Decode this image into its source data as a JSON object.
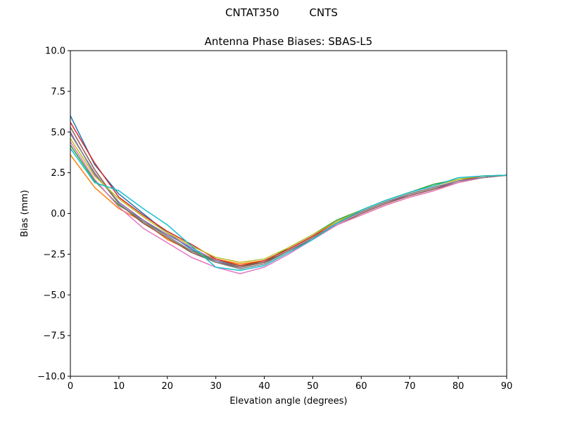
{
  "figure": {
    "suptitle": "CNTAT350         CNTS"
  },
  "chart_data": {
    "type": "line",
    "title": "Antenna Phase Biases: SBAS-L5",
    "xlabel": "Elevation angle (degrees)",
    "ylabel": "Bias (mm)",
    "xlim": [
      0,
      90
    ],
    "ylim": [
      -10,
      10
    ],
    "x_ticks": [
      0,
      10,
      20,
      30,
      40,
      50,
      60,
      70,
      80,
      90
    ],
    "y_ticks": [
      -10.0,
      -7.5,
      -5.0,
      -2.5,
      0.0,
      2.5,
      5.0,
      7.5,
      10.0
    ],
    "y_tick_labels": [
      "−10.0",
      "−7.5",
      "−5.0",
      "−2.5",
      "0.0",
      "2.5",
      "5.0",
      "7.5",
      "10.0"
    ],
    "grid": false,
    "legend": false,
    "x": [
      0,
      5,
      10,
      15,
      20,
      25,
      30,
      35,
      40,
      45,
      50,
      55,
      60,
      65,
      70,
      75,
      80,
      85,
      90
    ],
    "series": [
      {
        "color": "#1f77b4",
        "values": [
          6.0,
          3.0,
          1.2,
          0.0,
          -1.2,
          -2.2,
          -3.0,
          -3.3,
          -3.0,
          -2.3,
          -1.5,
          -0.6,
          0.1,
          0.7,
          1.2,
          1.6,
          2.0,
          2.2,
          2.35
        ]
      },
      {
        "color": "#ff7f0e",
        "values": [
          3.6,
          1.6,
          0.3,
          -0.5,
          -1.6,
          -2.3,
          -2.8,
          -3.1,
          -2.9,
          -2.2,
          -1.4,
          -0.7,
          -0.1,
          0.5,
          1.0,
          1.4,
          1.9,
          2.2,
          2.35
        ]
      },
      {
        "color": "#2ca02c",
        "values": [
          4.2,
          2.0,
          0.5,
          -0.4,
          -1.4,
          -2.3,
          -2.9,
          -3.2,
          -3.0,
          -2.1,
          -1.3,
          -0.4,
          0.2,
          0.8,
          1.3,
          1.8,
          2.1,
          2.3,
          2.35
        ]
      },
      {
        "color": "#d62728",
        "values": [
          5.6,
          3.1,
          1.0,
          -0.1,
          -1.1,
          -1.9,
          -2.8,
          -3.2,
          -2.9,
          -2.2,
          -1.4,
          -0.5,
          0.1,
          0.7,
          1.2,
          1.6,
          2.0,
          2.3,
          2.35
        ]
      },
      {
        "color": "#9467bd",
        "values": [
          5.0,
          2.4,
          0.7,
          -0.4,
          -1.3,
          -2.1,
          -2.9,
          -3.3,
          -3.0,
          -2.3,
          -1.5,
          -0.6,
          0.1,
          0.7,
          1.1,
          1.5,
          2.0,
          2.2,
          2.35
        ]
      },
      {
        "color": "#8c564b",
        "values": [
          5.3,
          2.7,
          0.6,
          -0.6,
          -1.5,
          -2.4,
          -3.0,
          -3.3,
          -3.0,
          -2.3,
          -1.6,
          -0.7,
          0.0,
          0.6,
          1.1,
          1.5,
          1.9,
          2.2,
          2.35
        ]
      },
      {
        "color": "#e377c2",
        "values": [
          4.4,
          2.1,
          0.4,
          -0.9,
          -1.8,
          -2.7,
          -3.3,
          -3.7,
          -3.3,
          -2.5,
          -1.6,
          -0.7,
          -0.1,
          0.5,
          1.0,
          1.4,
          1.9,
          2.2,
          2.35
        ]
      },
      {
        "color": "#7f7f7f",
        "values": [
          4.9,
          2.5,
          0.6,
          -0.5,
          -1.4,
          -2.3,
          -3.0,
          -3.4,
          -3.1,
          -2.3,
          -1.5,
          -0.6,
          0.1,
          0.7,
          1.2,
          1.6,
          2.0,
          2.2,
          2.35
        ]
      },
      {
        "color": "#bcbd22",
        "values": [
          4.6,
          2.3,
          0.9,
          -0.2,
          -1.2,
          -2.0,
          -2.7,
          -3.0,
          -2.8,
          -2.1,
          -1.3,
          -0.5,
          0.2,
          0.8,
          1.3,
          1.7,
          2.1,
          2.3,
          2.35
        ]
      },
      {
        "color": "#17becf",
        "values": [
          4.0,
          1.9,
          1.4,
          0.3,
          -0.7,
          -2.0,
          -3.3,
          -3.5,
          -3.2,
          -2.4,
          -1.6,
          -0.6,
          0.2,
          0.8,
          1.3,
          1.7,
          2.2,
          2.3,
          2.35
        ]
      }
    ]
  }
}
